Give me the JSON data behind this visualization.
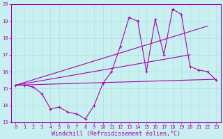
{
  "xlabel": "Windchill (Refroidissement éolien,°C)",
  "xlim": [
    -0.5,
    23.5
  ],
  "ylim": [
    13,
    20
  ],
  "xticks": [
    0,
    1,
    2,
    3,
    4,
    5,
    6,
    7,
    8,
    9,
    10,
    11,
    12,
    13,
    14,
    15,
    16,
    17,
    18,
    19,
    20,
    21,
    22,
    23
  ],
  "yticks": [
    13,
    14,
    15,
    16,
    17,
    18,
    19,
    20
  ],
  "background_color": "#c8f0f0",
  "grid_color": "#b0e0e0",
  "line_color": "#aa00aa",
  "line1_x": [
    0,
    1,
    2,
    3,
    4,
    5,
    6,
    7,
    8,
    9,
    10,
    11,
    12,
    13,
    14,
    15,
    16,
    17,
    18,
    19,
    20,
    21,
    22,
    23
  ],
  "line1_y": [
    15.2,
    15.2,
    15.1,
    14.7,
    13.8,
    13.9,
    13.6,
    13.5,
    13.2,
    14.0,
    15.3,
    16.0,
    17.5,
    19.2,
    19.0,
    16.0,
    19.1,
    17.0,
    19.7,
    19.4,
    16.3,
    16.1,
    16.0,
    15.5
  ],
  "line2_x": [
    0,
    23
  ],
  "line2_y": [
    15.2,
    15.55
  ],
  "line3_x": [
    0,
    22
  ],
  "line3_y": [
    15.2,
    18.7
  ],
  "line4_x": [
    0,
    20
  ],
  "line4_y": [
    15.2,
    17.0
  ],
  "font_size_tick": 5,
  "font_size_xlabel": 6
}
